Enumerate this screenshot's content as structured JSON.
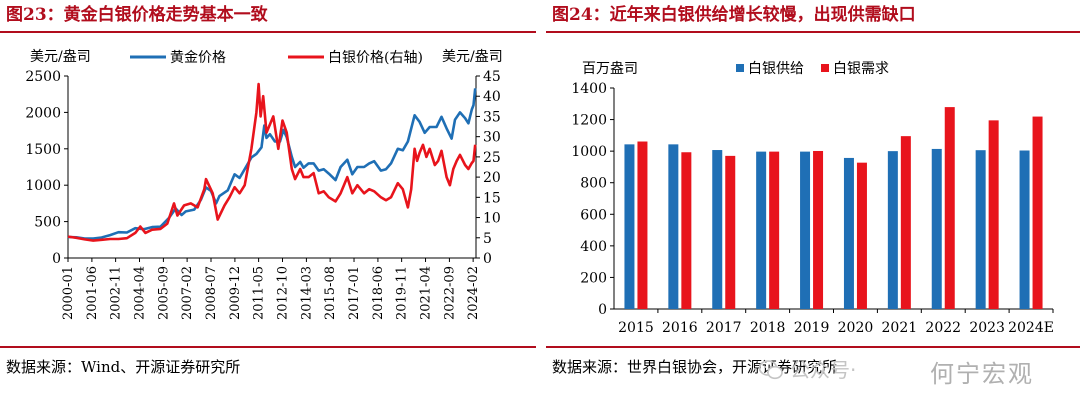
{
  "left_panel": {
    "title": "图23：黄金白银价格走势基本一致",
    "source": "数据来源：Wind、开源证券研究所"
  },
  "right_panel": {
    "title": "图24：近年来白银供给增长较慢，出现供需缺口",
    "source": "数据来源：世界白银协会，开源证券研究所"
  },
  "watermark": {
    "brand_text": "何宁宏观",
    "overlay_text": "公众号·",
    "icon": "wechat-icon"
  },
  "chart_data": [
    {
      "type": "line",
      "ylabel": "美元/盎司",
      "y2label": "美元/盎司",
      "ylim": [
        0,
        2500
      ],
      "y2lim": [
        0,
        45
      ],
      "yticks": [
        0,
        500,
        1000,
        1500,
        2000,
        2500
      ],
      "y2ticks": [
        0,
        5,
        10,
        15,
        20,
        25,
        30,
        35,
        40,
        45
      ],
      "xlim": [
        2000.0,
        2024.25
      ],
      "xticks": [
        {
          "label": "2000-01",
          "x": 2000.0
        },
        {
          "label": "2001-06",
          "x": 2001.42
        },
        {
          "label": "2002-11",
          "x": 2002.83
        },
        {
          "label": "2004-04",
          "x": 2004.25
        },
        {
          "label": "2005-09",
          "x": 2005.67
        },
        {
          "label": "2007-02",
          "x": 2007.08
        },
        {
          "label": "2008-07",
          "x": 2008.5
        },
        {
          "label": "2009-12",
          "x": 2009.92
        },
        {
          "label": "2011-05",
          "x": 2011.33
        },
        {
          "label": "2012-10",
          "x": 2012.75
        },
        {
          "label": "2014-03",
          "x": 2014.17
        },
        {
          "label": "2015-08",
          "x": 2015.58
        },
        {
          "label": "2017-01",
          "x": 2017.0
        },
        {
          "label": "2018-06",
          "x": 2018.42
        },
        {
          "label": "2019-11",
          "x": 2019.83
        },
        {
          "label": "2021-04",
          "x": 2021.25
        },
        {
          "label": "2022-09",
          "x": 2022.67
        },
        {
          "label": "2024-02",
          "x": 2024.08
        }
      ],
      "legend_position": "top",
      "series": [
        {
          "name": "黄金价格",
          "axis": "left",
          "color": "#1f6fb5",
          "points": [
            [
              2000.0,
              288
            ],
            [
              2000.5,
              285
            ],
            [
              2001.0,
              268
            ],
            [
              2001.5,
              268
            ],
            [
              2002.0,
              282
            ],
            [
              2002.5,
              315
            ],
            [
              2003.0,
              355
            ],
            [
              2003.5,
              350
            ],
            [
              2004.0,
              410
            ],
            [
              2004.5,
              395
            ],
            [
              2005.0,
              425
            ],
            [
              2005.5,
              430
            ],
            [
              2006.0,
              550
            ],
            [
              2006.4,
              680
            ],
            [
              2006.75,
              590
            ],
            [
              2007.0,
              640
            ],
            [
              2007.5,
              665
            ],
            [
              2007.9,
              800
            ],
            [
              2008.2,
              970
            ],
            [
              2008.5,
              920
            ],
            [
              2008.8,
              750
            ],
            [
              2009.0,
              850
            ],
            [
              2009.5,
              930
            ],
            [
              2009.9,
              1150
            ],
            [
              2010.2,
              1100
            ],
            [
              2010.5,
              1220
            ],
            [
              2010.9,
              1380
            ],
            [
              2011.2,
              1430
            ],
            [
              2011.5,
              1520
            ],
            [
              2011.67,
              1820
            ],
            [
              2011.8,
              1650
            ],
            [
              2012.0,
              1700
            ],
            [
              2012.3,
              1600
            ],
            [
              2012.6,
              1600
            ],
            [
              2012.8,
              1760
            ],
            [
              2013.0,
              1660
            ],
            [
              2013.3,
              1390
            ],
            [
              2013.5,
              1250
            ],
            [
              2013.8,
              1320
            ],
            [
              2014.0,
              1240
            ],
            [
              2014.3,
              1300
            ],
            [
              2014.6,
              1300
            ],
            [
              2014.9,
              1200
            ],
            [
              2015.2,
              1220
            ],
            [
              2015.5,
              1160
            ],
            [
              2015.9,
              1070
            ],
            [
              2016.2,
              1250
            ],
            [
              2016.6,
              1350
            ],
            [
              2016.9,
              1150
            ],
            [
              2017.2,
              1250
            ],
            [
              2017.6,
              1250
            ],
            [
              2017.9,
              1300
            ],
            [
              2018.2,
              1330
            ],
            [
              2018.6,
              1200
            ],
            [
              2018.9,
              1220
            ],
            [
              2019.2,
              1300
            ],
            [
              2019.6,
              1500
            ],
            [
              2019.9,
              1480
            ],
            [
              2020.2,
              1600
            ],
            [
              2020.6,
              1960
            ],
            [
              2020.9,
              1870
            ],
            [
              2021.2,
              1720
            ],
            [
              2021.5,
              1800
            ],
            [
              2021.9,
              1800
            ],
            [
              2022.2,
              1940
            ],
            [
              2022.5,
              1780
            ],
            [
              2022.8,
              1640
            ],
            [
              2023.0,
              1900
            ],
            [
              2023.3,
              2000
            ],
            [
              2023.6,
              1920
            ],
            [
              2023.8,
              1850
            ],
            [
              2024.0,
              2040
            ],
            [
              2024.1,
              2100
            ],
            [
              2024.2,
              2330
            ]
          ]
        },
        {
          "name": "白银价格(右轴)",
          "axis": "right",
          "color": "#e8141c",
          "points": [
            [
              2000.0,
              5.3
            ],
            [
              2000.5,
              5.0
            ],
            [
              2001.0,
              4.6
            ],
            [
              2001.5,
              4.3
            ],
            [
              2002.0,
              4.5
            ],
            [
              2002.5,
              4.7
            ],
            [
              2003.0,
              4.7
            ],
            [
              2003.5,
              4.9
            ],
            [
              2004.0,
              6.2
            ],
            [
              2004.3,
              7.8
            ],
            [
              2004.6,
              6.2
            ],
            [
              2005.0,
              7.0
            ],
            [
              2005.5,
              7.2
            ],
            [
              2005.9,
              8.5
            ],
            [
              2006.3,
              13.5
            ],
            [
              2006.5,
              10.5
            ],
            [
              2006.9,
              13.0
            ],
            [
              2007.3,
              13.5
            ],
            [
              2007.7,
              12.5
            ],
            [
              2008.1,
              17.0
            ],
            [
              2008.2,
              19.5
            ],
            [
              2008.6,
              16.0
            ],
            [
              2008.9,
              9.5
            ],
            [
              2009.3,
              13.0
            ],
            [
              2009.6,
              15.0
            ],
            [
              2009.9,
              17.5
            ],
            [
              2010.2,
              16.0
            ],
            [
              2010.5,
              18.0
            ],
            [
              2010.9,
              27.0
            ],
            [
              2011.2,
              36.0
            ],
            [
              2011.33,
              43.0
            ],
            [
              2011.45,
              35.0
            ],
            [
              2011.6,
              40.0
            ],
            [
              2011.8,
              31.0
            ],
            [
              2012.0,
              33.0
            ],
            [
              2012.2,
              35.0
            ],
            [
              2012.5,
              27.0
            ],
            [
              2012.75,
              34.0
            ],
            [
              2013.0,
              31.0
            ],
            [
              2013.3,
              22.0
            ],
            [
              2013.5,
              19.5
            ],
            [
              2013.8,
              22.0
            ],
            [
              2014.0,
              20.0
            ],
            [
              2014.3,
              20.0
            ],
            [
              2014.6,
              21.0
            ],
            [
              2014.9,
              16.0
            ],
            [
              2015.2,
              16.5
            ],
            [
              2015.5,
              15.0
            ],
            [
              2015.9,
              14.0
            ],
            [
              2016.2,
              16.0
            ],
            [
              2016.6,
              20.0
            ],
            [
              2016.9,
              16.0
            ],
            [
              2017.2,
              18.0
            ],
            [
              2017.6,
              16.0
            ],
            [
              2017.9,
              17.0
            ],
            [
              2018.2,
              16.5
            ],
            [
              2018.6,
              15.0
            ],
            [
              2018.9,
              14.3
            ],
            [
              2019.2,
              15.0
            ],
            [
              2019.6,
              18.5
            ],
            [
              2019.9,
              17.0
            ],
            [
              2020.2,
              12.5
            ],
            [
              2020.4,
              17.0
            ],
            [
              2020.6,
              27.0
            ],
            [
              2020.75,
              24.0
            ],
            [
              2020.9,
              26.0
            ],
            [
              2021.1,
              28.0
            ],
            [
              2021.3,
              25.0
            ],
            [
              2021.5,
              27.0
            ],
            [
              2021.8,
              23.0
            ],
            [
              2022.0,
              24.0
            ],
            [
              2022.2,
              26.5
            ],
            [
              2022.5,
              20.0
            ],
            [
              2022.7,
              18.0
            ],
            [
              2022.9,
              22.0
            ],
            [
              2023.1,
              24.0
            ],
            [
              2023.3,
              25.5
            ],
            [
              2023.6,
              23.0
            ],
            [
              2023.8,
              22.0
            ],
            [
              2024.0,
              23.5
            ],
            [
              2024.1,
              24.0
            ],
            [
              2024.2,
              28.0
            ]
          ]
        }
      ]
    },
    {
      "type": "bar",
      "ylabel": "百万盎司",
      "ylim": [
        0,
        1400
      ],
      "yticks": [
        0,
        200,
        400,
        600,
        800,
        1000,
        1200,
        1400
      ],
      "categories": [
        "2015",
        "2016",
        "2017",
        "2018",
        "2019",
        "2020",
        "2021",
        "2022",
        "2023",
        "2024E"
      ],
      "legend_position": "top",
      "series": [
        {
          "name": "白银供给",
          "color": "#1f6fb5",
          "values": [
            1043,
            1043,
            1007,
            997,
            997,
            957,
            1000,
            1014,
            1006,
            1004
          ]
        },
        {
          "name": "白银需求",
          "color": "#e8141c",
          "values": [
            1061,
            993,
            970,
            997,
            1001,
            927,
            1095,
            1279,
            1195,
            1219
          ]
        }
      ]
    }
  ]
}
